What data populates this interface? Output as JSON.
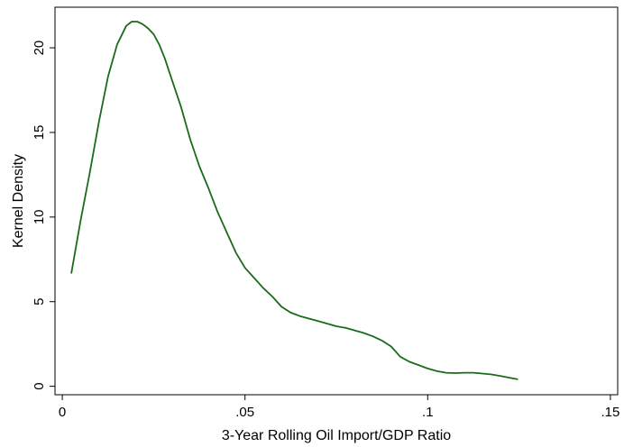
{
  "chart_data": {
    "type": "line",
    "title": "",
    "xlabel": "3-Year Rolling Oil Import/GDP Ratio",
    "ylabel": "Kernel Density",
    "xlim": [
      -0.002,
      0.152
    ],
    "ylim": [
      -0.5,
      22.4
    ],
    "x_ticks": [
      0,
      0.05,
      0.1,
      0.15
    ],
    "x_tick_labels": [
      "0",
      ".05",
      ".1",
      ".15"
    ],
    "y_ticks": [
      0,
      5,
      10,
      15,
      20
    ],
    "y_tick_labels": [
      "0",
      "5",
      "10",
      "15",
      "20"
    ],
    "grid": false,
    "legend": "none",
    "series": [
      {
        "color": "#1a6b1a",
        "x": [
          0.0025,
          0.005,
          0.0075,
          0.01,
          0.0125,
          0.015,
          0.0175,
          0.019,
          0.0205,
          0.022,
          0.0235,
          0.025,
          0.0265,
          0.028,
          0.03,
          0.0325,
          0.035,
          0.0375,
          0.04,
          0.0425,
          0.045,
          0.0475,
          0.05,
          0.0525,
          0.055,
          0.0575,
          0.06,
          0.0625,
          0.065,
          0.0675,
          0.07,
          0.0725,
          0.075,
          0.0775,
          0.08,
          0.0825,
          0.085,
          0.0875,
          0.09,
          0.0925,
          0.095,
          0.0975,
          0.1,
          0.1025,
          0.105,
          0.1075,
          0.11,
          0.1125,
          0.115,
          0.1175,
          0.12,
          0.1225,
          0.1245
        ],
        "y": [
          6.7,
          9.8,
          12.6,
          15.6,
          18.3,
          20.2,
          21.3,
          21.55,
          21.55,
          21.4,
          21.15,
          20.8,
          20.2,
          19.4,
          18.1,
          16.5,
          14.6,
          13.0,
          11.7,
          10.3,
          9.1,
          7.9,
          7.0,
          6.4,
          5.8,
          5.3,
          4.7,
          4.35,
          4.15,
          4.0,
          3.85,
          3.7,
          3.55,
          3.45,
          3.3,
          3.15,
          2.95,
          2.7,
          2.35,
          1.75,
          1.45,
          1.25,
          1.05,
          0.9,
          0.8,
          0.78,
          0.8,
          0.8,
          0.75,
          0.7,
          0.6,
          0.5,
          0.42
        ]
      }
    ]
  }
}
